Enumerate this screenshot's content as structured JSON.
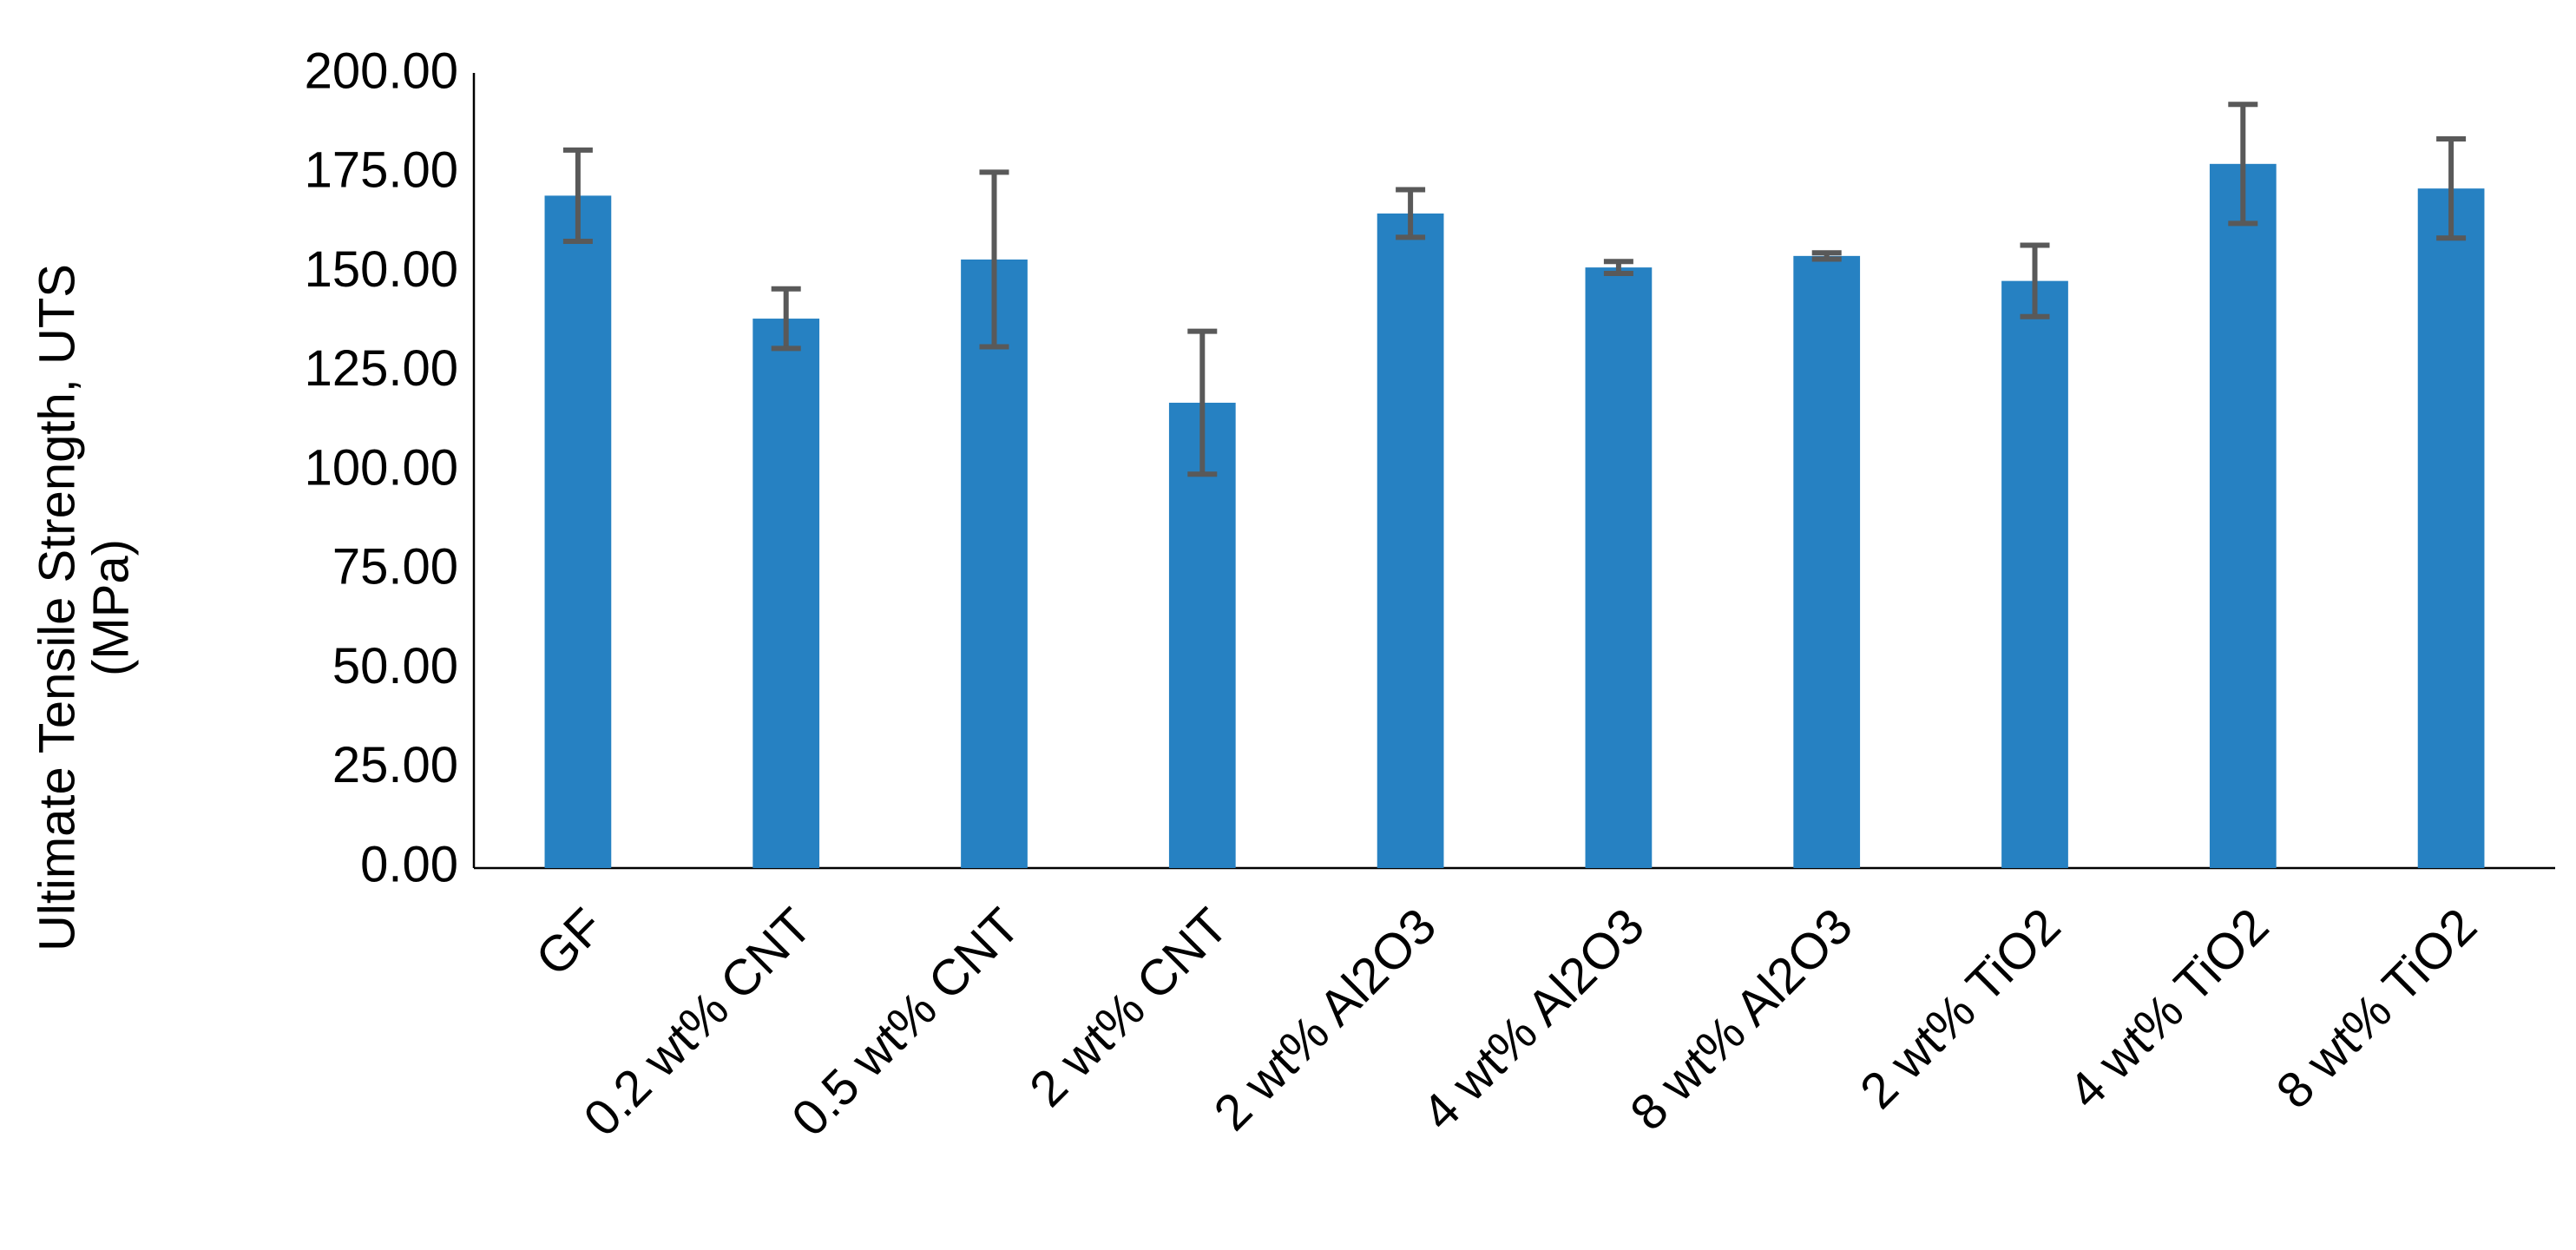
{
  "chart_data": {
    "type": "bar",
    "y_label": [
      "Ultimate Tensile Strength, UTS",
      "(MPa)"
    ],
    "categories": [
      "GF",
      "0.2 wt% CNT",
      "0.5 wt% CNT",
      "2 wt% CNT",
      "2 wt% Al2O3",
      "4 wt% Al2O3",
      "8 wt% Al2O3",
      "2 wt% TiO2",
      "4 wt% TiO2",
      "8 wt% TiO2"
    ],
    "values": [
      169.5,
      138.5,
      153.4,
      117.3,
      165,
      151.4,
      154.3,
      148,
      177.5,
      171.3
    ],
    "errors": [
      11.5,
      7.5,
      22,
      18,
      6,
      1.5,
      0.8,
      9,
      15,
      12.5
    ],
    "color": "#2681c2",
    "error_color": "#595959",
    "ylim": [
      0,
      200
    ],
    "yticks": [
      {
        "value": 0,
        "label": "0.00"
      },
      {
        "value": 25,
        "label": "25.00"
      },
      {
        "value": 50,
        "label": "50.00"
      },
      {
        "value": 75,
        "label": "75.00"
      },
      {
        "value": 100,
        "label": "100.00"
      },
      {
        "value": 125,
        "label": "125.00"
      },
      {
        "value": 150,
        "label": "150.00"
      },
      {
        "value": 175,
        "label": "175.00"
      },
      {
        "value": 200,
        "label": "200.00"
      }
    ],
    "grid": false
  }
}
